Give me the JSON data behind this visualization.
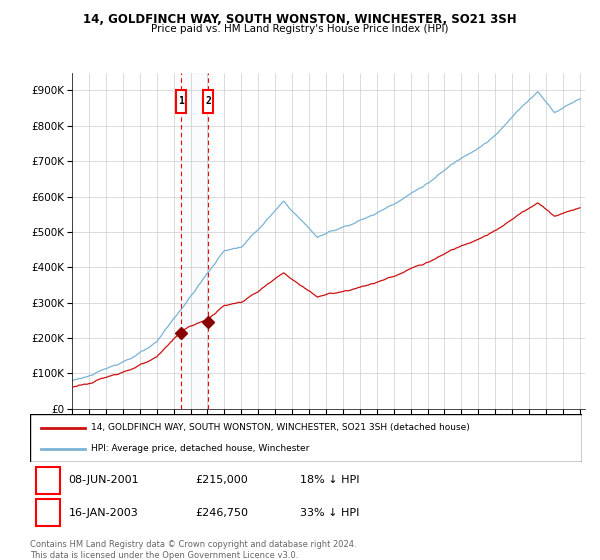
{
  "title": "14, GOLDFINCH WAY, SOUTH WONSTON, WINCHESTER, SO21 3SH",
  "subtitle": "Price paid vs. HM Land Registry's House Price Index (HPI)",
  "ylim": [
    0,
    950000
  ],
  "yticks": [
    0,
    100000,
    200000,
    300000,
    400000,
    500000,
    600000,
    700000,
    800000,
    900000
  ],
  "ytick_labels": [
    "£0",
    "£100K",
    "£200K",
    "£300K",
    "£400K",
    "£500K",
    "£600K",
    "£700K",
    "£800K",
    "£900K"
  ],
  "hpi_color": "#7ab3d4",
  "price_color": "#cc1111",
  "sale1_date": 2001.44,
  "sale1_price": 215000,
  "sale2_date": 2003.04,
  "sale2_price": 246750,
  "legend_line1": "14, GOLDFINCH WAY, SOUTH WONSTON, WINCHESTER, SO21 3SH (detached house)",
  "legend_line2": "HPI: Average price, detached house, Winchester",
  "table_row1": [
    "1",
    "08-JUN-2001",
    "£215,000",
    "18% ↓ HPI"
  ],
  "table_row2": [
    "2",
    "16-JAN-2003",
    "£246,750",
    "33% ↓ HPI"
  ],
  "footnote": "Contains HM Land Registry data © Crown copyright and database right 2024.\nThis data is licensed under the Open Government Licence v3.0.",
  "background_color": "#ffffff",
  "grid_color": "#cccccc"
}
